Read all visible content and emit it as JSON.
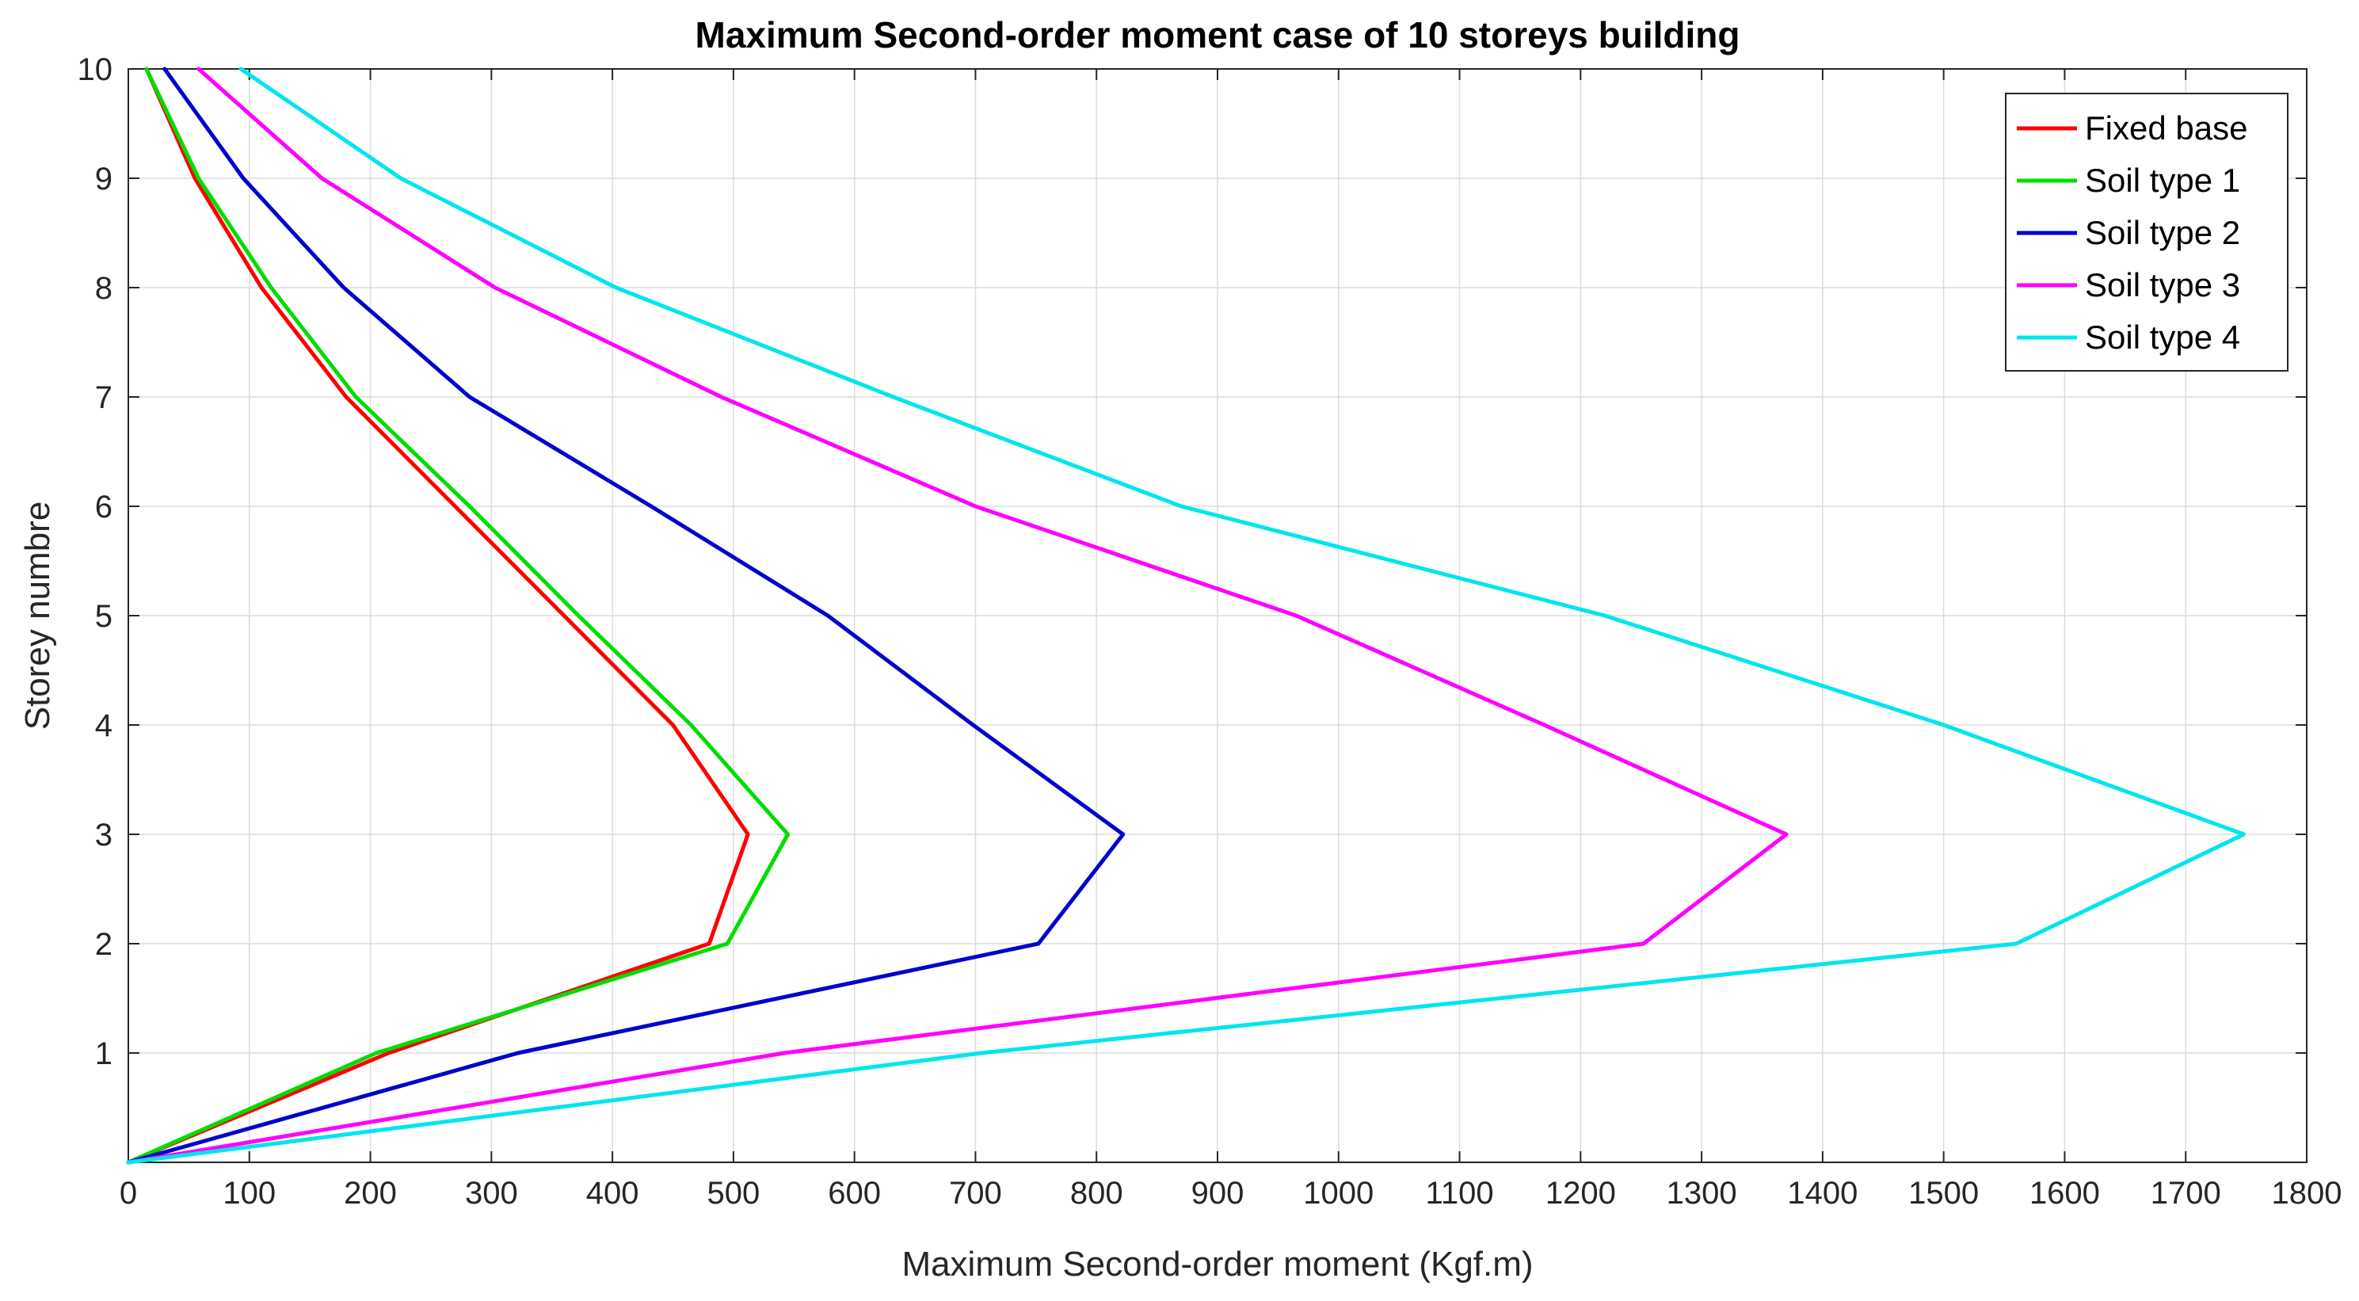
{
  "chart_data": {
    "type": "line",
    "title": "Maximum Second-order moment case of 10 storeys building",
    "xlabel": "Maximum Second-order moment (Kgf.m)",
    "ylabel": "Storey numbre",
    "xlim": [
      0,
      1800
    ],
    "ylim": [
      0,
      10
    ],
    "xticks": [
      0,
      100,
      200,
      300,
      400,
      500,
      600,
      700,
      800,
      900,
      1000,
      1100,
      1200,
      1300,
      1400,
      1500,
      1600,
      1700,
      1800
    ],
    "yticks": [
      1,
      2,
      3,
      4,
      5,
      6,
      7,
      8,
      9,
      10
    ],
    "grid": true,
    "legend_position": "top-right",
    "y": [
      0,
      1,
      2,
      3,
      4,
      5,
      6,
      7,
      8,
      9,
      10
    ],
    "series": [
      {
        "name": "Fixed base",
        "color": "#ff0000",
        "x": [
          0,
          215,
          480,
          512,
          450,
          360,
          270,
          180,
          110,
          55,
          15
        ]
      },
      {
        "name": "Soil type 1",
        "color": "#00dd00",
        "x": [
          0,
          205,
          495,
          545,
          465,
          372,
          282,
          188,
          118,
          58,
          15
        ]
      },
      {
        "name": "Soil type 2",
        "color": "#0000cc",
        "x": [
          0,
          322,
          752,
          822,
          698,
          578,
          432,
          282,
          178,
          95,
          30
        ]
      },
      {
        "name": "Soil type 3",
        "color": "#ff00ff",
        "x": [
          0,
          542,
          1252,
          1370,
          1170,
          965,
          700,
          490,
          303,
          160,
          58
        ]
      },
      {
        "name": "Soil type 4",
        "color": "#00e5ee",
        "x": [
          0,
          705,
          1560,
          1748,
          1500,
          1220,
          870,
          632,
          403,
          225,
          93
        ]
      }
    ]
  }
}
